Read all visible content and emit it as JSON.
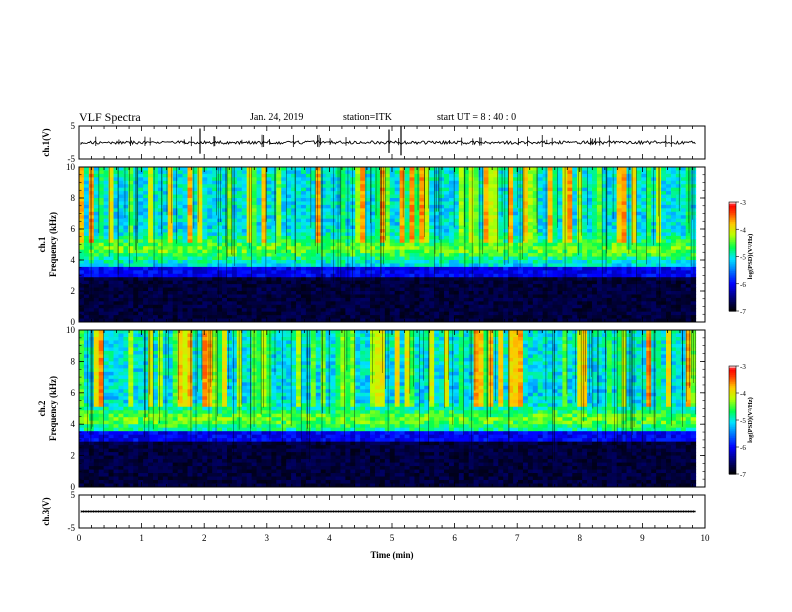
{
  "header": {
    "title": "VLF Spectra",
    "date": "Jan. 24, 2019",
    "station": "station=ITK",
    "start": "start  UT  =   8  : 40 : 0"
  },
  "chart_data": [
    {
      "type": "line",
      "name": "ch1-waveform",
      "ylabel": "ch.1(V)",
      "ylim": [
        -5,
        5
      ],
      "yticks": [
        "5",
        "-5"
      ],
      "xlim": [
        0,
        10
      ],
      "baseline": 0,
      "color": "#000000"
    },
    {
      "type": "heatmap",
      "name": "ch1-spectrogram",
      "ylabel_channel": "ch.1",
      "ylabel": "Frequency  (kHz)",
      "ylim": [
        0,
        10
      ],
      "yticks": [
        "0",
        "2",
        "4",
        "6",
        "8",
        "10"
      ],
      "xlim": [
        0,
        10
      ],
      "data_extent_min": 9.85,
      "band_center_khz": 4.7,
      "colorbar": {
        "label": "log(PSD)(V²/Hz)",
        "range": [
          -7,
          -3
        ],
        "ticks": [
          "-3",
          "-4",
          "-5",
          "-6",
          "-7"
        ]
      }
    },
    {
      "type": "heatmap",
      "name": "ch2-spectrogram",
      "ylabel_channel": "ch.2",
      "ylabel": "Frequency  (kHz)",
      "ylim": [
        0,
        10
      ],
      "yticks": [
        "0",
        "2",
        "4",
        "6",
        "8",
        "10"
      ],
      "xlim": [
        0,
        10
      ],
      "data_extent_min": 9.85,
      "band_center_khz": 4.3,
      "colorbar": {
        "label": "log(PSD)(V²/Hz)",
        "range": [
          -7,
          -3
        ],
        "ticks": [
          "-3",
          "-4",
          "-5",
          "-6",
          "-7"
        ]
      }
    },
    {
      "type": "line",
      "name": "ch3-waveform",
      "ylabel": "ch.3(V)",
      "ylim": [
        -5,
        5
      ],
      "yticks": [
        "5",
        "-5"
      ],
      "xlim": [
        0,
        10
      ],
      "baseline": 0,
      "color": "#000000"
    }
  ],
  "xaxis": {
    "label": "Time  (min)",
    "ticks": [
      "0",
      "1",
      "2",
      "3",
      "4",
      "5",
      "6",
      "7",
      "8",
      "9",
      "10"
    ]
  },
  "colors": {
    "colormap": [
      "#000000",
      "#000080",
      "#0000ff",
      "#0088ff",
      "#00ffff",
      "#00ff44",
      "#ccff00",
      "#ffcc00",
      "#ff4400",
      "#ff0000",
      "#ffffff"
    ]
  }
}
